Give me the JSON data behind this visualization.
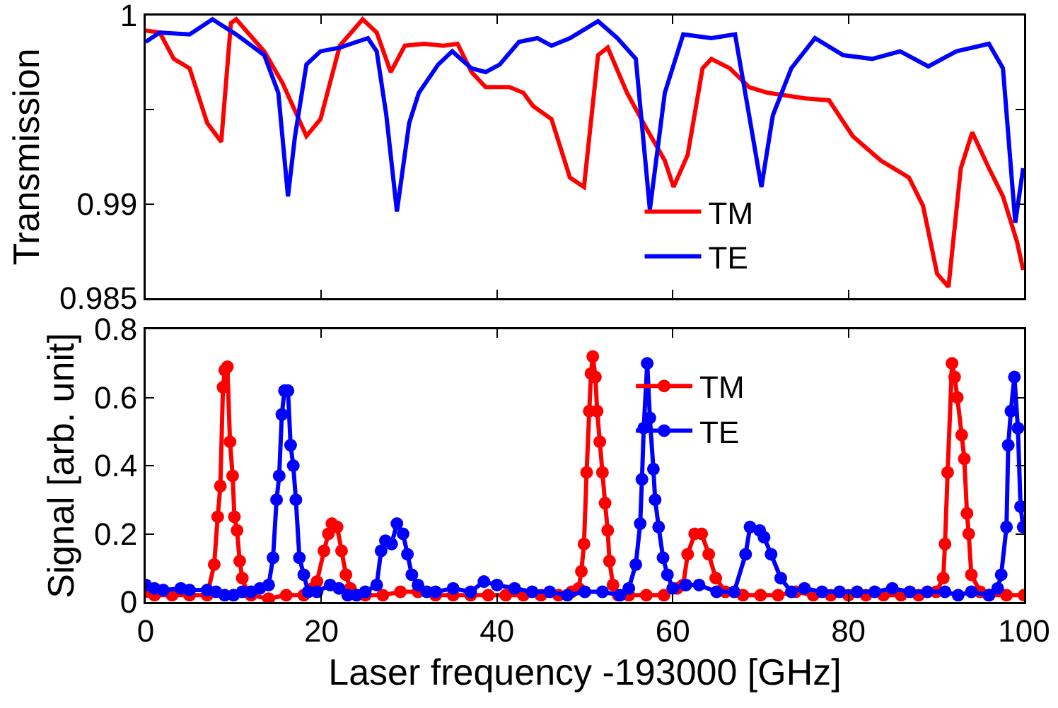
{
  "chart_data": [
    {
      "type": "line",
      "ylabel": "Transmission",
      "xlim": [
        0,
        100
      ],
      "xticks": [
        0,
        20,
        40,
        60,
        80,
        100
      ],
      "ylim": [
        0.985,
        1
      ],
      "yticks": [
        0.985,
        0.99,
        {
          "value": 0.995,
          "label": null
        },
        1
      ],
      "tick_labels": "y",
      "legend": "bottom right",
      "grid": false,
      "marker": "none",
      "line_style": "solid",
      "series": [
        {
          "name": "TM",
          "color": "#ff0000",
          "x": [
            0,
            1.6,
            3.2,
            5.0,
            7.0,
            8.6,
            9.7,
            10.3,
            13.5,
            15.6,
            18.3,
            19.9,
            22.1,
            24.7,
            26.3,
            27.9,
            29.5,
            31.7,
            33.9,
            35.5,
            37.1,
            38.7,
            41.4,
            43.0,
            44.1,
            46.2,
            48.3,
            49.9,
            51.5,
            52.6,
            54.8,
            56.9,
            59.1,
            60.1,
            61.7,
            63.4,
            64.4,
            66.5,
            68.7,
            70.8,
            75.1,
            77.8,
            80.5,
            83.7,
            86.9,
            88.5,
            90.1,
            91.4,
            92.8,
            94.1,
            96.0,
            97.6,
            99.2,
            99.9
          ],
          "values": [
            0.9992,
            0.9991,
            0.9977,
            0.9972,
            0.9943,
            0.9933,
            0.9996,
            0.9998,
            0.9981,
            0.9964,
            0.9936,
            0.9945,
            0.9984,
            0.9998,
            0.9991,
            0.997,
            0.9984,
            0.9985,
            0.9984,
            0.9985,
            0.997,
            0.9962,
            0.9962,
            0.9959,
            0.9952,
            0.9945,
            0.9914,
            0.9909,
            0.9979,
            0.9983,
            0.9959,
            0.9941,
            0.9923,
            0.9909,
            0.9926,
            0.9972,
            0.9977,
            0.9972,
            0.9962,
            0.9959,
            0.9956,
            0.9955,
            0.9936,
            0.9923,
            0.9914,
            0.9899,
            0.9863,
            0.9856,
            0.9919,
            0.9938,
            0.9919,
            0.9904,
            0.988,
            0.9865
          ]
        },
        {
          "name": "TE",
          "color": "#0000ff",
          "x": [
            0,
            1.6,
            5.0,
            7.6,
            10.3,
            13.5,
            15.1,
            16.2,
            17.0,
            18.3,
            19.9,
            22.1,
            25.3,
            26.3,
            27.4,
            28.6,
            30.0,
            31.1,
            33.3,
            34.9,
            37.1,
            38.7,
            40.3,
            42.5,
            44.6,
            46.2,
            48.3,
            51.5,
            53.7,
            55.8,
            57.4,
            59.1,
            61.2,
            64.4,
            67.1,
            68.7,
            70.1,
            71.4,
            73.5,
            76.2,
            79.4,
            82.7,
            85.9,
            89.1,
            92.3,
            96.0,
            97.6,
            99.0,
            99.9
          ],
          "values": [
            0.9986,
            0.9991,
            0.999,
            0.9998,
            0.999,
            0.9979,
            0.9959,
            0.9904,
            0.9936,
            0.9974,
            0.9981,
            0.9983,
            0.9988,
            0.9981,
            0.9947,
            0.9896,
            0.9943,
            0.9959,
            0.9974,
            0.9981,
            0.9972,
            0.997,
            0.9974,
            0.9986,
            0.9988,
            0.9984,
            0.9988,
            0.9997,
            0.9988,
            0.9977,
            0.9897,
            0.9959,
            0.999,
            0.9988,
            0.999,
            0.9947,
            0.9909,
            0.9947,
            0.9972,
            0.9988,
            0.9979,
            0.9977,
            0.9981,
            0.9973,
            0.9981,
            0.9985,
            0.9972,
            0.989,
            0.9919
          ]
        }
      ]
    },
    {
      "type": "line",
      "xlabel": "Laser frequency -193000 [GHz]",
      "ylabel": "Signal [arb. unit]",
      "xlim": [
        0,
        100
      ],
      "xticks": [
        0,
        20,
        40,
        60,
        80,
        100
      ],
      "ylim": [
        0,
        0.8
      ],
      "yticks": [
        0,
        0.2,
        0.4,
        0.6,
        0.8
      ],
      "legend": "top right",
      "grid": false,
      "marker": "circle",
      "line_style": "solid",
      "series": [
        {
          "name": "TM",
          "color": "#ff0000",
          "x": [
            0,
            1,
            3,
            5,
            7,
            7.8,
            8.2,
            8.5,
            8.8,
            9.0,
            9.3,
            9.6,
            9.9,
            10.1,
            10.4,
            10.7,
            11.0,
            11.5,
            12,
            14,
            16,
            18,
            19,
            19.5,
            20.3,
            20.8,
            21.2,
            21.8,
            22.3,
            22.8,
            23.3,
            25,
            27,
            29,
            31,
            33,
            35,
            37,
            39,
            41,
            43,
            45,
            47,
            48.5,
            49.3,
            49.6,
            49.9,
            50.2,
            50.5,
            50.7,
            50.9,
            51.2,
            51.4,
            51.7,
            52.0,
            52.3,
            52.6,
            52.8,
            53.2,
            53.8,
            55,
            57,
            59,
            60.5,
            61.2,
            61.7,
            62.5,
            63.3,
            64.1,
            64.9,
            66,
            68,
            70,
            72,
            74,
            76,
            78,
            80,
            82,
            84,
            86,
            88,
            90,
            90.8,
            91.0,
            91.3,
            91.8,
            92.1,
            92.4,
            92.9,
            93.2,
            93.5,
            93.7,
            94.0,
            95,
            96,
            98,
            100
          ],
          "values": [
            0.03,
            0.02,
            0.02,
            0.02,
            0.02,
            0.11,
            0.25,
            0.34,
            0.63,
            0.68,
            0.69,
            0.47,
            0.37,
            0.25,
            0.21,
            0.12,
            0.07,
            0.03,
            0.02,
            0.01,
            0.02,
            0.02,
            0.04,
            0.06,
            0.15,
            0.2,
            0.23,
            0.22,
            0.15,
            0.08,
            0.04,
            0.02,
            0.02,
            0.03,
            0.03,
            0.02,
            0.02,
            0.02,
            0.02,
            0.02,
            0.02,
            0.02,
            0.02,
            0.03,
            0.04,
            0.09,
            0.17,
            0.38,
            0.56,
            0.67,
            0.72,
            0.66,
            0.56,
            0.47,
            0.38,
            0.29,
            0.21,
            0.12,
            0.05,
            0.02,
            0.02,
            0.02,
            0.02,
            0.04,
            0.05,
            0.14,
            0.2,
            0.2,
            0.14,
            0.07,
            0.03,
            0.02,
            0.02,
            0.02,
            0.03,
            0.02,
            0.02,
            0.02,
            0.02,
            0.02,
            0.02,
            0.02,
            0.03,
            0.07,
            0.17,
            0.38,
            0.7,
            0.66,
            0.6,
            0.49,
            0.42,
            0.26,
            0.2,
            0.08,
            0.03,
            0.02,
            0.02,
            0.02
          ]
        },
        {
          "name": "TE",
          "color": "#0000ff",
          "x": [
            0,
            1,
            2,
            4,
            5,
            7,
            8,
            9,
            10,
            11,
            12,
            13,
            14.0,
            14.5,
            14.9,
            15.2,
            15.5,
            15.8,
            16.2,
            16.5,
            16.8,
            17.1,
            17.5,
            18.0,
            18.5,
            19.5,
            21,
            22,
            23,
            24,
            25,
            26.3,
            26.8,
            27.3,
            28.0,
            28.6,
            29.3,
            29.8,
            30.3,
            31,
            32,
            33,
            35,
            37,
            38.5,
            40,
            42,
            44,
            46,
            48,
            50,
            52,
            54,
            55,
            55.8,
            56.3,
            56.5,
            56.7,
            57.1,
            57.4,
            57.8,
            58.0,
            58.4,
            58.9,
            59.4,
            60,
            61.5,
            63,
            65,
            67,
            68.3,
            68.8,
            69.9,
            70.4,
            71.2,
            72.3,
            73.5,
            75,
            77,
            79,
            81,
            83,
            85,
            87,
            89,
            91,
            92.5,
            94,
            96,
            97,
            97.4,
            98.0,
            98.2,
            98.5,
            98.9,
            99.3,
            99.6,
            99.9
          ],
          "values": [
            0.05,
            0.04,
            0.035,
            0.04,
            0.035,
            0.035,
            0.03,
            0.02,
            0.02,
            0.03,
            0.03,
            0.04,
            0.05,
            0.13,
            0.3,
            0.37,
            0.55,
            0.62,
            0.62,
            0.46,
            0.4,
            0.3,
            0.13,
            0.08,
            0.03,
            0.03,
            0.05,
            0.04,
            0.02,
            0.02,
            0.03,
            0.05,
            0.15,
            0.18,
            0.17,
            0.23,
            0.2,
            0.14,
            0.08,
            0.05,
            0.03,
            0.03,
            0.04,
            0.03,
            0.06,
            0.05,
            0.04,
            0.03,
            0.03,
            0.02,
            0.03,
            0.03,
            0.02,
            0.04,
            0.11,
            0.23,
            0.36,
            0.51,
            0.7,
            0.54,
            0.39,
            0.3,
            0.22,
            0.13,
            0.08,
            0.04,
            0.05,
            0.05,
            0.03,
            0.03,
            0.14,
            0.22,
            0.21,
            0.19,
            0.14,
            0.07,
            0.03,
            0.04,
            0.03,
            0.03,
            0.03,
            0.03,
            0.04,
            0.03,
            0.03,
            0.03,
            0.02,
            0.03,
            0.02,
            0.04,
            0.08,
            0.22,
            0.46,
            0.56,
            0.66,
            0.51,
            0.28,
            0.22
          ]
        }
      ]
    }
  ]
}
